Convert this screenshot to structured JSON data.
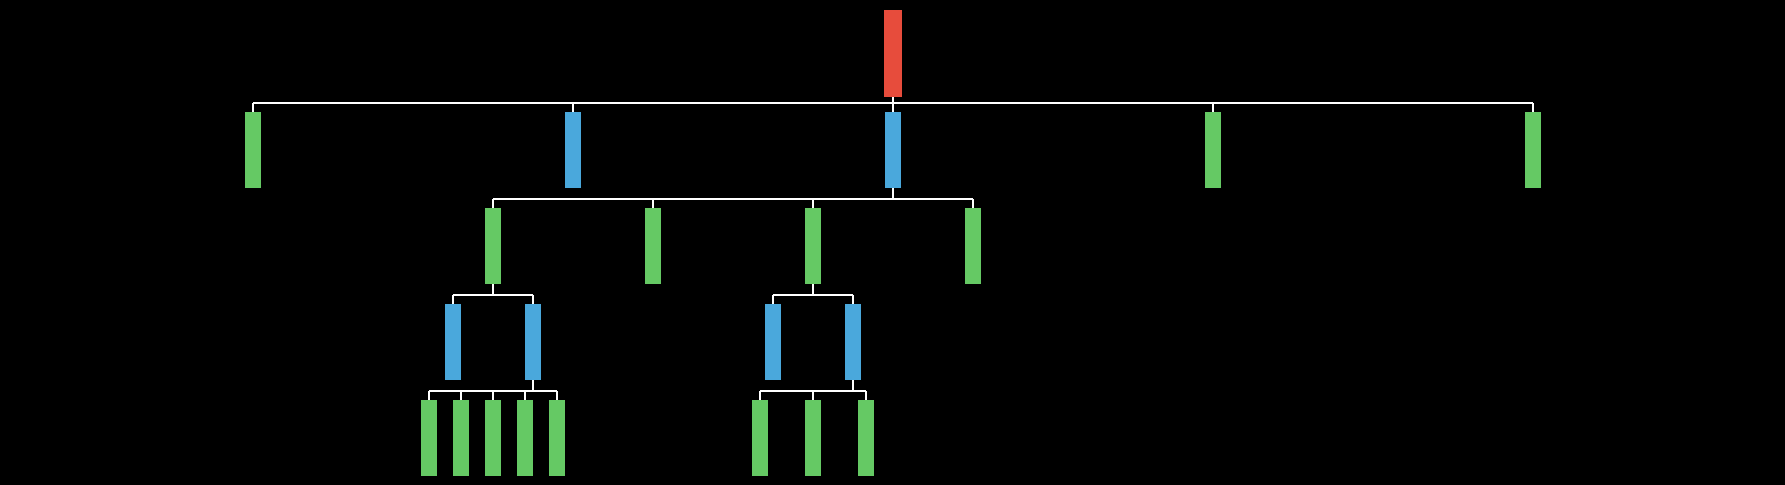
{
  "colors": {
    "background": "#000000",
    "root": "#e74c3c",
    "internal": "#4aa8dc",
    "leaf": "#65c964",
    "edge": "#ffffff"
  },
  "tree": {
    "id": "root",
    "type": "root",
    "children": [
      {
        "id": "n1",
        "type": "leaf"
      },
      {
        "id": "n2",
        "type": "internal"
      },
      {
        "id": "n3",
        "type": "internal",
        "children": [
          {
            "id": "n3-1",
            "type": "leaf",
            "children": [
              {
                "id": "n3-1-1",
                "type": "internal"
              },
              {
                "id": "n3-1-2",
                "type": "internal",
                "children": [
                  {
                    "id": "n3-1-2-1",
                    "type": "leaf"
                  },
                  {
                    "id": "n3-1-2-2",
                    "type": "leaf"
                  },
                  {
                    "id": "n3-1-2-3",
                    "type": "leaf"
                  },
                  {
                    "id": "n3-1-2-4",
                    "type": "leaf"
                  },
                  {
                    "id": "n3-1-2-5",
                    "type": "leaf"
                  }
                ]
              }
            ]
          },
          {
            "id": "n3-2",
            "type": "leaf"
          },
          {
            "id": "n3-3",
            "type": "leaf",
            "children": [
              {
                "id": "n3-3-1",
                "type": "internal"
              },
              {
                "id": "n3-3-2",
                "type": "internal",
                "children": [
                  {
                    "id": "n3-3-2-1",
                    "type": "leaf"
                  },
                  {
                    "id": "n3-3-2-2",
                    "type": "leaf"
                  },
                  {
                    "id": "n3-3-2-3",
                    "type": "leaf"
                  }
                ]
              }
            ]
          },
          {
            "id": "n3-4",
            "type": "leaf"
          }
        ]
      },
      {
        "id": "n4",
        "type": "leaf"
      },
      {
        "id": "n5",
        "type": "leaf"
      }
    ]
  }
}
